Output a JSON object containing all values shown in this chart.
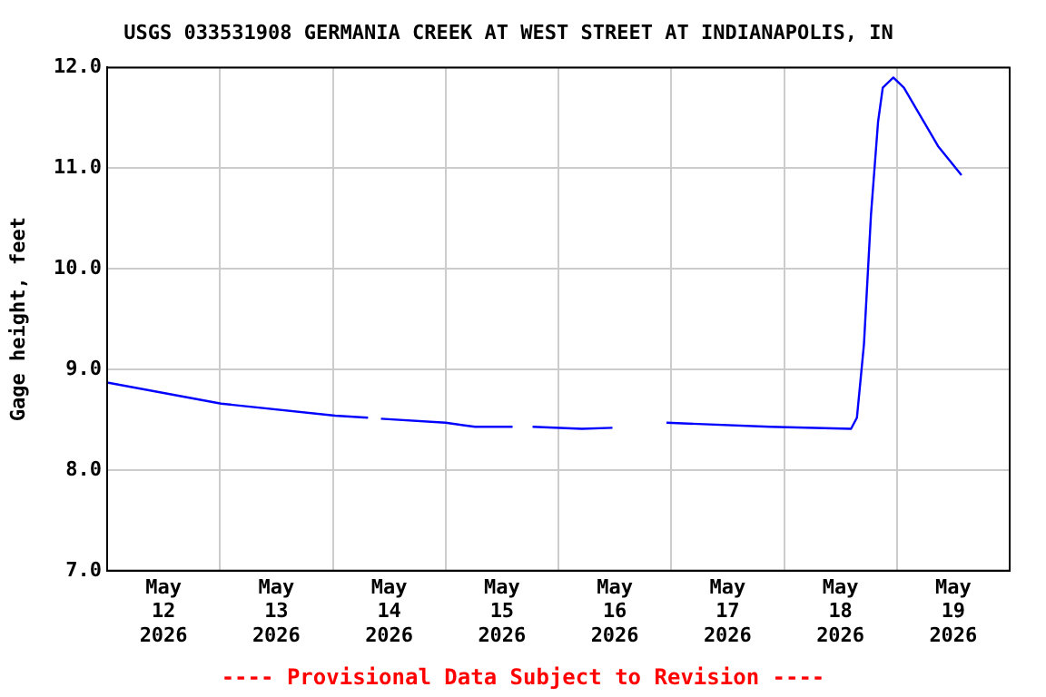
{
  "chart_data": {
    "type": "line",
    "title": "USGS 033531908 GERMANIA CREEK AT WEST STREET AT INDIANAPOLIS, IN",
    "ylabel": "Gage height, feet",
    "x": [
      "2026-05-12T00:00",
      "2026-05-13T00:15",
      "2026-05-14T00:30",
      "2026-05-14T07:30",
      "2026-05-14T09:00",
      "2026-05-14T10:15",
      "2026-05-15T00:00",
      "2026-05-15T06:15",
      "2026-05-15T14:15",
      "2026-05-15T16:30",
      "2026-05-15T18:30",
      "2026-05-16T05:00",
      "2026-05-16T11:30",
      "2026-05-16T17:00",
      "2026-05-16T23:00",
      "2026-05-17T21:00",
      "2026-05-18T14:15",
      "2026-05-18T15:30",
      "2026-05-18T17:00",
      "2026-05-18T18:30",
      "2026-05-18T20:00",
      "2026-05-18T21:00",
      "2026-05-18T23:15",
      "2026-05-19T01:30",
      "2026-05-19T08:45",
      "2026-05-19T13:45"
    ],
    "series": [
      {
        "color": "#0000ff",
        "values": [
          8.87,
          8.66,
          8.54,
          8.52,
          null,
          8.51,
          8.47,
          8.43,
          8.43,
          null,
          8.43,
          8.41,
          8.42,
          null,
          8.47,
          8.43,
          8.41,
          8.52,
          9.25,
          10.54,
          11.46,
          11.8,
          11.9,
          11.8,
          11.22,
          10.93
        ]
      }
    ],
    "xlim": [
      "2026-05-12T00:00",
      "2026-05-20T00:00"
    ],
    "xticks": [
      {
        "value": "2026-05-12T12:00",
        "label": "May\n12\n2026"
      },
      {
        "value": "2026-05-13T00:00",
        "label": null
      },
      {
        "value": "2026-05-13T12:00",
        "label": "May\n13\n2026"
      },
      {
        "value": "2026-05-14T00:00",
        "label": null
      },
      {
        "value": "2026-05-14T12:00",
        "label": "May\n14\n2026"
      },
      {
        "value": "2026-05-15T00:00",
        "label": null
      },
      {
        "value": "2026-05-15T12:00",
        "label": "May\n15\n2026"
      },
      {
        "value": "2026-05-16T00:00",
        "label": null
      },
      {
        "value": "2026-05-16T12:00",
        "label": "May\n16\n2026"
      },
      {
        "value": "2026-05-17T00:00",
        "label": null
      },
      {
        "value": "2026-05-17T12:00",
        "label": "May\n17\n2026"
      },
      {
        "value": "2026-05-18T00:00",
        "label": null
      },
      {
        "value": "2026-05-18T12:00",
        "label": "May\n18\n2026"
      },
      {
        "value": "2026-05-19T00:00",
        "label": null
      },
      {
        "value": "2026-05-19T12:00",
        "label": "May\n19\n2026"
      }
    ],
    "ylim": [
      7,
      12
    ],
    "yticks": [
      {
        "value": 7,
        "label": "7.0"
      },
      {
        "value": 8,
        "label": "8.0"
      },
      {
        "value": 9,
        "label": "9.0"
      },
      {
        "value": 10,
        "label": "10.0"
      },
      {
        "value": 11,
        "label": "11.0"
      },
      {
        "value": 12,
        "label": "12.0"
      }
    ],
    "grid": true,
    "marker": "none",
    "annotations": [
      "---- Provisional Data Subject to Revision ----"
    ]
  }
}
